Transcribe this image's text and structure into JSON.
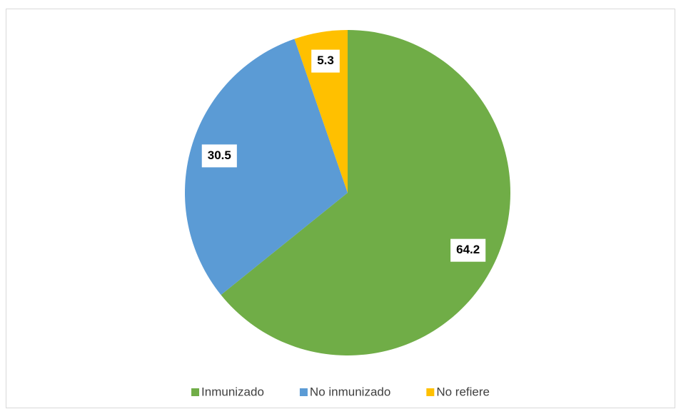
{
  "chart_data": {
    "type": "pie",
    "categories": [
      "Inmunizado",
      "No inmunizado",
      "No refiere"
    ],
    "values": [
      64.2,
      30.5,
      5.3
    ],
    "colors": [
      "#70ad47",
      "#5b9bd5",
      "#ffc000"
    ],
    "legend": "bottom"
  }
}
